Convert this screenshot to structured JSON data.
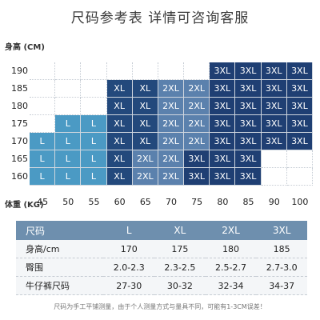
{
  "title": "尺码参考表  详情可咨询客服",
  "y_axis_label": "身高 (CM)",
  "x_axis_label": "体重 (KG)",
  "heights": [
    "190",
    "185",
    "180",
    "175",
    "170",
    "165",
    "160"
  ],
  "weights": [
    "45",
    "50",
    "55",
    "60",
    "65",
    "70",
    "75",
    "80",
    "85",
    "90",
    "100"
  ],
  "colors": {
    "L": "#4b9ac4",
    "XL": "#23497c",
    "2XL": "#5b81ad",
    "3XL": "#1f3f73"
  },
  "grid": [
    [
      "",
      "",
      "",
      "",
      "",
      "",
      "",
      "3XL",
      "3XL",
      "3XL",
      "3XL"
    ],
    [
      "",
      "",
      "",
      "XL",
      "XL",
      "2XL",
      "2XL",
      "3XL",
      "3XL",
      "3XL",
      "3XL"
    ],
    [
      "",
      "",
      "",
      "XL",
      "XL",
      "2XL",
      "2XL",
      "3XL",
      "3XL",
      "3XL",
      "3XL"
    ],
    [
      "",
      "L",
      "L",
      "XL",
      "XL",
      "2XL",
      "2XL",
      "3XL",
      "3XL",
      "3XL",
      "3XL"
    ],
    [
      "L",
      "L",
      "L",
      "XL",
      "XL",
      "2XL",
      "2XL",
      "3XL",
      "3XL",
      "3XL",
      "3XL"
    ],
    [
      "L",
      "L",
      "L",
      "XL",
      "2XL",
      "2XL",
      "3XL",
      "3XL",
      "3XL",
      "",
      ""
    ],
    [
      "L",
      "L",
      "L",
      "XL",
      "2XL",
      "2XL",
      "3XL",
      "3XL",
      "3XL",
      "",
      ""
    ]
  ],
  "table": {
    "header": [
      "尺码",
      "L",
      "XL",
      "2XL",
      "3XL"
    ],
    "rows": [
      [
        "身高/cm",
        "170",
        "175",
        "180",
        "185"
      ],
      [
        "臀围",
        "2.0-2.3",
        "2.3-2.5",
        "2.5-2.7",
        "2.7-3.0"
      ],
      [
        "牛仔裤尺码",
        "27-30",
        "30-32",
        "32-34",
        "34-37"
      ]
    ]
  },
  "note": "尺码为手工平铺测量，由于个人测量方式与量具不同，可能有1-3CM误差！"
}
